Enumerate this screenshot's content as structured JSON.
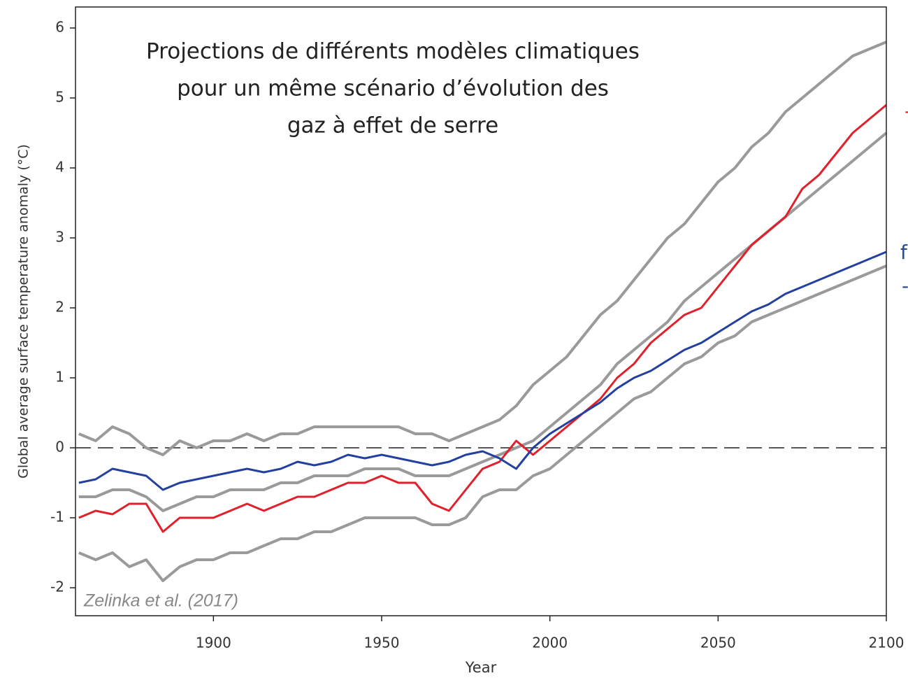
{
  "chart_data": {
    "type": "line",
    "title_lines": [
      "Projections de différents modèles climatiques",
      "pour un même scénario d’évolution des",
      "gaz à effet de serre"
    ],
    "xlabel": "Year",
    "ylabel": "Global average surface temperature anomaly (°C)",
    "source": "Zelinka et al. (2017)",
    "annotations": [
      {
        "text": "f",
        "color": "#1f4e9c"
      },
      {
        "text": "-",
        "color": "#1f4e9c"
      },
      {
        "text": "-",
        "color": "#e0202a"
      }
    ],
    "x": [
      1860,
      1865,
      1870,
      1875,
      1880,
      1885,
      1890,
      1895,
      1900,
      1905,
      1910,
      1915,
      1920,
      1925,
      1930,
      1935,
      1940,
      1945,
      1950,
      1955,
      1960,
      1965,
      1970,
      1975,
      1980,
      1985,
      1990,
      1995,
      2000,
      2005,
      2010,
      2015,
      2020,
      2025,
      2030,
      2035,
      2040,
      2045,
      2050,
      2055,
      2060,
      2065,
      2070,
      2075,
      2080,
      2085,
      2090,
      2095,
      2100
    ],
    "series": [
      {
        "color": "#9a9a9a",
        "values": [
          0.2,
          0.1,
          0.3,
          0.2,
          0.0,
          -0.1,
          0.1,
          0.0,
          0.1,
          0.1,
          0.2,
          0.1,
          0.2,
          0.2,
          0.3,
          0.3,
          0.3,
          0.3,
          0.3,
          0.3,
          0.2,
          0.2,
          0.1,
          0.2,
          0.3,
          0.4,
          0.6,
          0.9,
          1.1,
          1.3,
          1.6,
          1.9,
          2.1,
          2.4,
          2.7,
          3.0,
          3.2,
          3.5,
          3.8,
          4.0,
          4.3,
          4.5,
          4.8,
          5.0,
          5.2,
          5.4,
          5.6,
          5.7,
          5.8
        ]
      },
      {
        "color": "#9a9a9a",
        "values": [
          -0.7,
          -0.7,
          -0.6,
          -0.6,
          -0.7,
          -0.9,
          -0.8,
          -0.7,
          -0.7,
          -0.6,
          -0.6,
          -0.6,
          -0.5,
          -0.5,
          -0.4,
          -0.4,
          -0.4,
          -0.3,
          -0.3,
          -0.3,
          -0.4,
          -0.4,
          -0.4,
          -0.3,
          -0.2,
          -0.1,
          0.0,
          0.1,
          0.3,
          0.5,
          0.7,
          0.9,
          1.2,
          1.4,
          1.6,
          1.8,
          2.1,
          2.3,
          2.5,
          2.7,
          2.9,
          3.1,
          3.3,
          3.5,
          3.7,
          3.9,
          4.1,
          4.3,
          4.5
        ]
      },
      {
        "color": "#9a9a9a",
        "values": [
          -1.5,
          -1.6,
          -1.5,
          -1.7,
          -1.6,
          -1.9,
          -1.7,
          -1.6,
          -1.6,
          -1.5,
          -1.5,
          -1.4,
          -1.3,
          -1.3,
          -1.2,
          -1.2,
          -1.1,
          -1.0,
          -1.0,
          -1.0,
          -1.0,
          -1.1,
          -1.1,
          -1.0,
          -0.7,
          -0.6,
          -0.6,
          -0.4,
          -0.3,
          -0.1,
          0.1,
          0.3,
          0.5,
          0.7,
          0.8,
          1.0,
          1.2,
          1.3,
          1.5,
          1.6,
          1.8,
          1.9,
          2.0,
          2.1,
          2.2,
          2.3,
          2.4,
          2.5,
          2.6
        ]
      },
      {
        "color": "#e0202a",
        "values": [
          -1.0,
          -0.9,
          -0.95,
          -0.8,
          -0.8,
          -1.2,
          -1.0,
          -1.0,
          -1.0,
          -0.9,
          -0.8,
          -0.9,
          -0.8,
          -0.7,
          -0.7,
          -0.6,
          -0.5,
          -0.5,
          -0.4,
          -0.5,
          -0.5,
          -0.8,
          -0.9,
          -0.6,
          -0.3,
          -0.2,
          0.1,
          -0.1,
          0.1,
          0.3,
          0.5,
          0.7,
          1.0,
          1.2,
          1.5,
          1.7,
          1.9,
          2.0,
          2.3,
          2.6,
          2.9,
          3.1,
          3.3,
          3.7,
          3.9,
          4.2,
          4.5,
          4.7,
          4.9
        ]
      },
      {
        "color": "#2340a0",
        "values": [
          -0.5,
          -0.45,
          -0.3,
          -0.35,
          -0.4,
          -0.6,
          -0.5,
          -0.45,
          -0.4,
          -0.35,
          -0.3,
          -0.35,
          -0.3,
          -0.2,
          -0.25,
          -0.2,
          -0.1,
          -0.15,
          -0.1,
          -0.15,
          -0.2,
          -0.25,
          -0.2,
          -0.1,
          -0.05,
          -0.15,
          -0.3,
          0.0,
          0.2,
          0.35,
          0.5,
          0.65,
          0.85,
          1.0,
          1.1,
          1.25,
          1.4,
          1.5,
          1.65,
          1.8,
          1.95,
          2.05,
          2.2,
          2.3,
          2.4,
          2.5,
          2.6,
          2.7,
          2.8
        ]
      }
    ],
    "hline": 0,
    "xlim": [
      1859,
      2100
    ],
    "ylim": [
      -2.4,
      6.3
    ],
    "xticks": [
      1900,
      1950,
      2000,
      2050,
      2100
    ],
    "yticks": [
      -2,
      -1,
      0,
      1,
      2,
      3,
      4,
      5,
      6
    ]
  }
}
